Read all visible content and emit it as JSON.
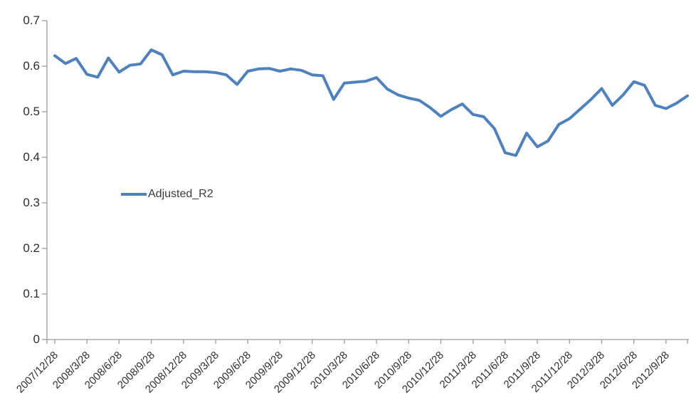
{
  "chart_data": {
    "type": "line",
    "title": "",
    "xlabel": "",
    "ylabel": "",
    "ylim": [
      0,
      0.7
    ],
    "y_tick_step": 0.1,
    "grid": false,
    "legend": {
      "label": "Adjusted_R2",
      "position": "middle-left"
    },
    "y_tick_labels": [
      "0.7",
      "0.6",
      "0.5",
      "0.4",
      "0.3",
      "0.2",
      "0.1",
      "0"
    ],
    "x_tick_labels": [
      "2007/12/28",
      "2008/3/28",
      "2008/6/28",
      "2008/9/28",
      "2008/12/28",
      "2009/3/28",
      "2009/6/28",
      "2009/9/28",
      "2009/12/28",
      "2010/3/28",
      "2010/6/28",
      "2010/9/28",
      "2010/12/28",
      "2011/3/28",
      "2011/6/28",
      "2011/9/28",
      "2011/12/28",
      "2012/3/28",
      "2012/6/28",
      "2012/9/28"
    ],
    "series": [
      {
        "name": "Adjusted_R2",
        "color": "#4F81BD",
        "x": [
          "2007/12/28",
          "2008/1/28",
          "2008/2/28",
          "2008/3/28",
          "2008/4/28",
          "2008/5/28",
          "2008/6/28",
          "2008/7/28",
          "2008/8/28",
          "2008/9/28",
          "2008/10/28",
          "2008/11/28",
          "2008/12/28",
          "2009/1/28",
          "2009/2/28",
          "2009/3/28",
          "2009/4/28",
          "2009/5/28",
          "2009/6/28",
          "2009/7/28",
          "2009/8/28",
          "2009/9/28",
          "2009/10/28",
          "2009/11/28",
          "2009/12/28",
          "2010/1/28",
          "2010/2/28",
          "2010/3/28",
          "2010/4/28",
          "2010/5/28",
          "2010/6/28",
          "2010/7/28",
          "2010/8/28",
          "2010/9/28",
          "2010/10/28",
          "2010/11/28",
          "2010/12/28",
          "2011/1/28",
          "2011/2/28",
          "2011/3/28",
          "2011/4/28",
          "2011/5/28",
          "2011/6/28",
          "2011/7/28",
          "2011/8/28",
          "2011/9/28",
          "2011/10/28",
          "2011/11/28",
          "2011/12/28",
          "2012/1/28",
          "2012/2/28",
          "2012/3/28",
          "2012/4/28",
          "2012/5/28",
          "2012/6/28",
          "2012/7/28",
          "2012/8/28",
          "2012/9/28",
          "2012/10/28",
          "2012/11/28"
        ],
        "values": [
          0.623,
          0.606,
          0.617,
          0.582,
          0.576,
          0.618,
          0.587,
          0.602,
          0.605,
          0.636,
          0.625,
          0.581,
          0.589,
          0.588,
          0.588,
          0.586,
          0.581,
          0.56,
          0.589,
          0.594,
          0.595,
          0.589,
          0.594,
          0.591,
          0.581,
          0.579,
          0.527,
          0.563,
          0.565,
          0.567,
          0.575,
          0.55,
          0.537,
          0.53,
          0.525,
          0.509,
          0.49,
          0.505,
          0.517,
          0.494,
          0.489,
          0.463,
          0.41,
          0.404,
          0.453,
          0.423,
          0.436,
          0.472,
          0.485,
          0.506,
          0.527,
          0.551,
          0.514,
          0.537,
          0.566,
          0.558,
          0.514,
          0.507,
          0.519,
          0.535
        ]
      }
    ]
  },
  "colors": {
    "line": "#4F81BD",
    "axis": "#9b9b9b",
    "label_text": "#2e2e2e",
    "background": "#ffffff"
  }
}
